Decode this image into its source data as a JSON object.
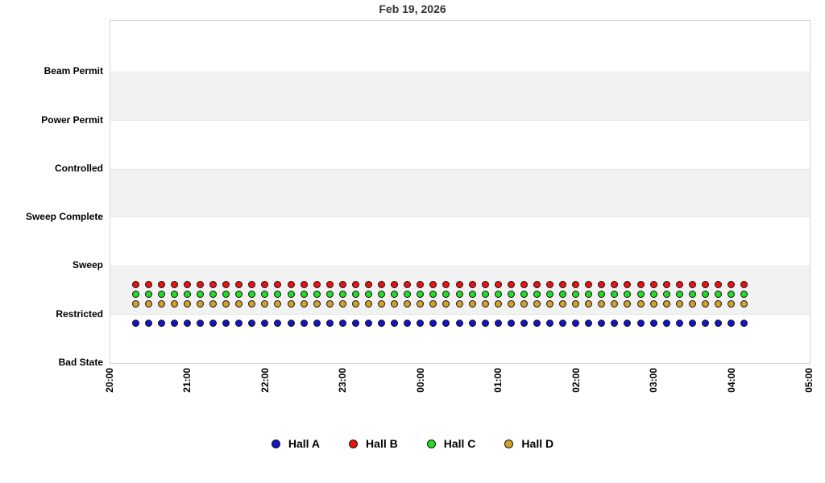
{
  "chart_data": {
    "type": "scatter",
    "title": "Feb 19, 2026",
    "xlabel": "",
    "ylabel": "",
    "grid": false,
    "y_axis": {
      "categories_bottom_to_top": [
        "Bad State",
        "Restricted",
        "Sweep",
        "Sweep Complete",
        "Controlled",
        "Power Permit",
        "Beam Permit"
      ],
      "top_padding_value": 7.05
    },
    "x_axis": {
      "ticks": [
        "20:00",
        "21:00",
        "22:00",
        "23:00",
        "00:00",
        "01:00",
        "02:00",
        "03:00",
        "04:00",
        "05:00"
      ],
      "range_hours": 9,
      "tick_label_rotation_deg": -90
    },
    "shaded_bands": [
      {
        "from": "Restricted",
        "to": "Sweep"
      },
      {
        "from": "Sweep Complete",
        "to": "Controlled"
      },
      {
        "from": "Power Permit",
        "to": "Beam Permit"
      }
    ],
    "sample_times": [
      "20:20",
      "20:30",
      "20:40",
      "20:50",
      "21:00",
      "21:10",
      "21:20",
      "21:30",
      "21:40",
      "21:50",
      "22:00",
      "22:10",
      "22:20",
      "22:30",
      "22:40",
      "22:50",
      "23:00",
      "23:10",
      "23:20",
      "23:30",
      "23:40",
      "23:50",
      "00:00",
      "00:10",
      "00:20",
      "00:30",
      "00:40",
      "00:50",
      "01:00",
      "01:10",
      "01:20",
      "01:30",
      "01:40",
      "01:50",
      "02:00",
      "02:10",
      "02:20",
      "02:30",
      "02:40",
      "02:50",
      "03:00",
      "03:10",
      "03:20",
      "03:30",
      "03:40",
      "03:50",
      "04:00",
      "04:10"
    ],
    "series": [
      {
        "name": "Hall A",
        "color": "#1414c8",
        "state_all_points": "Restricted",
        "plot_offset": -0.2
      },
      {
        "name": "Hall B",
        "color": "#ee1111",
        "state_all_points": "Restricted",
        "plot_offset": 0.6
      },
      {
        "name": "Hall C",
        "color": "#22dd22",
        "state_all_points": "Restricted",
        "plot_offset": 0.4
      },
      {
        "name": "Hall D",
        "color": "#d2a12c",
        "state_all_points": "Restricted",
        "plot_offset": 0.2
      }
    ],
    "legend": {
      "position": "bottom",
      "entries": [
        "Hall A",
        "Hall B",
        "Hall C",
        "Hall D"
      ]
    }
  }
}
